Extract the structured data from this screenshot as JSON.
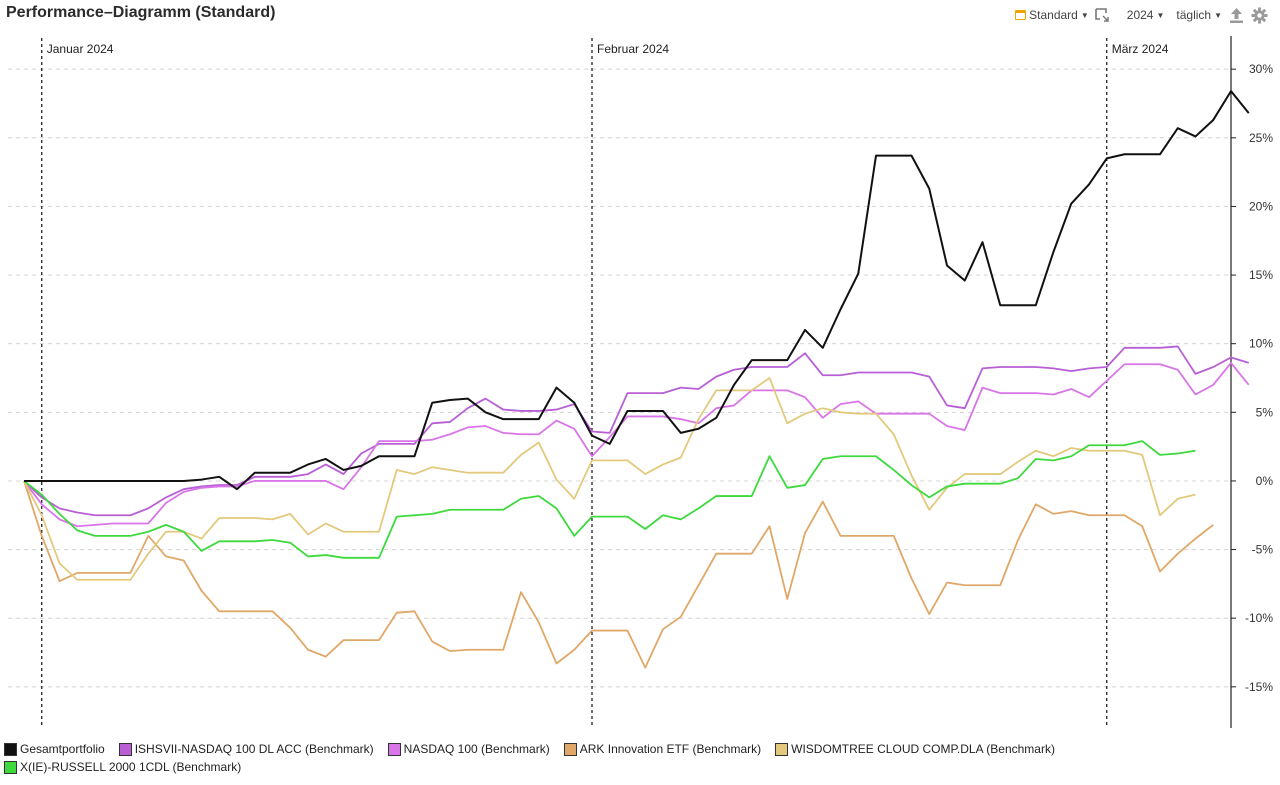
{
  "header": {
    "title": "Performance–Diagramm (Standard)",
    "view_label": "Standard",
    "year_label": "2024",
    "interval_label": "täglich"
  },
  "chart_data": {
    "type": "line",
    "title": "Performance–Diagramm (Standard)",
    "y_axis": {
      "position": "right",
      "ylim": [
        -18,
        33
      ],
      "ticks": [
        30,
        25,
        20,
        15,
        10,
        5,
        0,
        -5,
        -10,
        -15
      ],
      "format": "percent"
    },
    "x_range": [
      0,
      68
    ],
    "month_markers": [
      {
        "label": "Januar 2024",
        "x": 1
      },
      {
        "label": "Februar 2024",
        "x": 32
      },
      {
        "label": "März 2024",
        "x": 61
      }
    ],
    "series": [
      {
        "name": "Gesamtportfolio",
        "color": "#111111",
        "values": [
          0,
          0,
          0,
          0,
          0,
          0,
          0,
          0,
          0,
          0,
          0.1,
          0.3,
          -0.6,
          0.6,
          0.6,
          0.6,
          1.2,
          1.6,
          0.8,
          1.1,
          1.8,
          1.8,
          1.8,
          5.7,
          5.9,
          6.0,
          5.0,
          4.5,
          4.5,
          4.5,
          6.8,
          5.7,
          3.3,
          2.7,
          5.1,
          5.1,
          5.1,
          3.5,
          3.8,
          4.6,
          7.0,
          8.8,
          8.8,
          8.8,
          11.0,
          9.7,
          12.5,
          15.1,
          23.7,
          23.7,
          23.7,
          21.3,
          15.7,
          14.6,
          17.4,
          12.8,
          12.8,
          12.8,
          16.7,
          20.2,
          21.6,
          23.5,
          23.8,
          23.8,
          23.8,
          25.7,
          25.1,
          26.3,
          28.4,
          26.8
        ]
      },
      {
        "name": "ISHSVII-NASDAQ 100 DL ACC (Benchmark)",
        "color": "#b85fd6",
        "values": [
          0,
          -1.2,
          -2.0,
          -2.3,
          -2.5,
          -2.5,
          -2.5,
          -2.0,
          -1.2,
          -0.6,
          -0.4,
          -0.3,
          -0.3,
          0.3,
          0.3,
          0.3,
          0.5,
          1.2,
          0.5,
          2.0,
          2.7,
          2.7,
          2.7,
          4.2,
          4.3,
          5.3,
          6.0,
          5.2,
          5.1,
          5.1,
          5.2,
          5.6,
          3.6,
          3.5,
          6.4,
          6.4,
          6.4,
          6.8,
          6.7,
          7.6,
          8.1,
          8.3,
          8.3,
          8.3,
          9.3,
          7.7,
          7.7,
          7.9,
          7.9,
          7.9,
          7.9,
          7.6,
          5.5,
          5.3,
          8.2,
          8.3,
          8.3,
          8.3,
          8.2,
          8.0,
          8.2,
          8.3,
          9.7,
          9.7,
          9.7,
          9.8,
          7.8,
          8.3,
          9.0,
          8.6
        ]
      },
      {
        "name": "NASDAQ 100 (Benchmark)",
        "color": "#d975e8",
        "values": [
          0,
          -1.7,
          -2.8,
          -3.3,
          -3.2,
          -3.1,
          -3.1,
          -3.1,
          -1.6,
          -0.8,
          -0.5,
          -0.4,
          -0.4,
          0,
          0,
          0,
          0,
          0,
          -0.6,
          1.0,
          2.9,
          2.9,
          2.9,
          3.0,
          3.4,
          3.9,
          4.0,
          3.5,
          3.4,
          3.4,
          4.4,
          3.8,
          1.8,
          3.2,
          4.7,
          4.7,
          4.7,
          4.5,
          4.2,
          5.3,
          5.5,
          6.6,
          6.6,
          6.6,
          6.1,
          4.6,
          5.6,
          5.8,
          4.9,
          4.9,
          4.9,
          4.9,
          4.0,
          3.7,
          6.8,
          6.4,
          6.4,
          6.4,
          6.3,
          6.7,
          6.1,
          7.3,
          8.5,
          8.5,
          8.5,
          8.1,
          6.3,
          7.0,
          8.6,
          7.0
        ]
      },
      {
        "name": "ARK Innovation ETF (Benchmark)",
        "color": "#e0a868",
        "values": [
          0,
          -4.0,
          -7.3,
          -6.7,
          -6.7,
          -6.7,
          -6.7,
          -4.0,
          -5.5,
          -5.8,
          -8.0,
          -9.5,
          -9.5,
          -9.5,
          -9.5,
          -10.7,
          -12.3,
          -12.8,
          -11.6,
          -11.6,
          -11.6,
          -9.6,
          -9.5,
          -11.7,
          -12.4,
          -12.3,
          -12.3,
          -12.3,
          -8.1,
          -10.3,
          -13.3,
          -12.3,
          -10.9,
          -10.9,
          -10.9,
          -13.6,
          -10.8,
          -9.9,
          -7.6,
          -5.3,
          -5.3,
          -5.3,
          -3.3,
          -8.6,
          -3.8,
          -1.5,
          -4.0,
          -4.0,
          -4.0,
          -4.0,
          -7.1,
          -9.7,
          -7.4,
          -7.6,
          -7.6,
          -7.6,
          -4.3,
          -1.7,
          -2.4,
          -2.2,
          -2.5,
          -2.5,
          -2.5,
          -3.3,
          -6.6,
          -5.3,
          -4.2,
          -3.2
        ]
      },
      {
        "name": "WISDOMTREE CLOUD COMP.DLA (Benchmark)",
        "color": "#e3c97d",
        "values": [
          0,
          -2.5,
          -6.0,
          -7.2,
          -7.2,
          -7.2,
          -7.2,
          -5.3,
          -3.7,
          -3.7,
          -4.2,
          -2.7,
          -2.7,
          -2.7,
          -2.8,
          -2.4,
          -3.9,
          -3.1,
          -3.7,
          -3.7,
          -3.7,
          0.8,
          0.5,
          1.0,
          0.8,
          0.6,
          0.6,
          0.6,
          1.9,
          2.8,
          0.1,
          -1.3,
          1.5,
          1.5,
          1.5,
          0.5,
          1.2,
          1.7,
          4.5,
          6.6,
          6.6,
          6.6,
          7.5,
          4.2,
          4.9,
          5.3,
          5.0,
          4.9,
          4.9,
          3.4,
          0.4,
          -2.1,
          -0.5,
          0.5,
          0.5,
          0.5,
          1.4,
          2.2,
          1.8,
          2.4,
          2.2,
          2.2,
          2.2,
          1.9,
          -2.5,
          -1.3,
          -1.0
        ]
      },
      {
        "name": "X(IE)-RUSSELL 2000 1CDL (Benchmark)",
        "color": "#3dd93d",
        "values": [
          0,
          -1.0,
          -2.4,
          -3.6,
          -4.0,
          -4.0,
          -4.0,
          -3.7,
          -3.2,
          -3.7,
          -5.1,
          -4.4,
          -4.4,
          -4.4,
          -4.3,
          -4.5,
          -5.5,
          -5.4,
          -5.6,
          -5.6,
          -5.6,
          -2.6,
          -2.5,
          -2.4,
          -2.1,
          -2.1,
          -2.1,
          -2.1,
          -1.3,
          -1.1,
          -2.0,
          -4.0,
          -2.6,
          -2.6,
          -2.6,
          -3.5,
          -2.5,
          -2.8,
          -2.0,
          -1.1,
          -1.1,
          -1.1,
          1.8,
          -0.5,
          -0.3,
          1.6,
          1.8,
          1.8,
          1.8,
          0.8,
          -0.3,
          -1.2,
          -0.4,
          -0.2,
          -0.2,
          -0.2,
          0.2,
          1.6,
          1.5,
          1.8,
          2.6,
          2.6,
          2.6,
          2.9,
          1.9,
          2.0,
          2.2
        ]
      }
    ]
  },
  "legend": {
    "items": [
      {
        "label": "Gesamtportfolio",
        "color": "#111111"
      },
      {
        "label": "ISHSVII-NASDAQ 100 DL ACC (Benchmark)",
        "color": "#b85fd6"
      },
      {
        "label": "NASDAQ 100 (Benchmark)",
        "color": "#d975e8"
      },
      {
        "label": "ARK Innovation ETF (Benchmark)",
        "color": "#e0a868"
      },
      {
        "label": "WISDOMTREE CLOUD COMP.DLA (Benchmark)",
        "color": "#e3c97d"
      },
      {
        "label": "X(IE)-RUSSELL 2000 1CDL (Benchmark)",
        "color": "#3dd93d"
      }
    ]
  },
  "icons": {
    "calendar": "calendar-icon",
    "expand": "expand-icon",
    "upload": "upload-icon",
    "settings": "gear-icon"
  }
}
